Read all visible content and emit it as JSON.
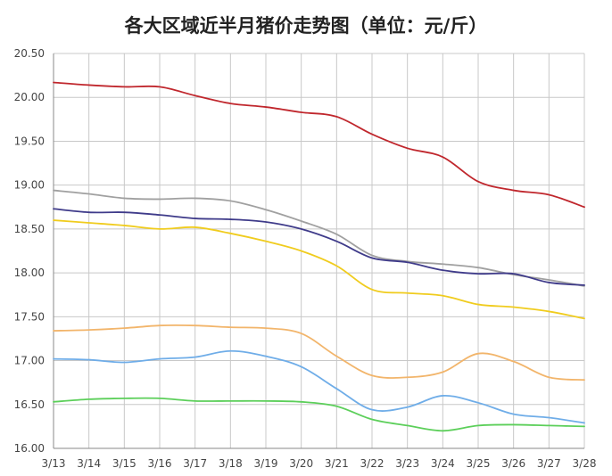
{
  "chart_data": {
    "type": "line",
    "title": "各大区域近半月猪价走势图（单位：元/斤）",
    "xlabel": "",
    "ylabel": "",
    "categories": [
      "3/13",
      "3/14",
      "3/15",
      "3/16",
      "3/17",
      "3/18",
      "3/19",
      "3/20",
      "3/21",
      "3/22",
      "3/23",
      "3/24",
      "3/25",
      "3/26",
      "3/27",
      "3/28"
    ],
    "ylim": [
      16.0,
      20.5
    ],
    "yticks": [
      "16.00",
      "16.50",
      "17.00",
      "17.50",
      "18.00",
      "18.50",
      "19.00",
      "19.50",
      "20.00",
      "20.50"
    ],
    "grid": true,
    "legend": "none",
    "series": [
      {
        "color": "#c0272d",
        "values": [
          20.17,
          20.14,
          20.12,
          20.12,
          20.02,
          19.93,
          19.89,
          19.83,
          19.78,
          19.58,
          19.42,
          19.32,
          19.04,
          18.94,
          18.89,
          18.75
        ]
      },
      {
        "color": "#a0a0a0",
        "values": [
          18.94,
          18.9,
          18.85,
          18.84,
          18.85,
          18.82,
          18.72,
          18.59,
          18.44,
          18.2,
          18.13,
          18.1,
          18.06,
          17.98,
          17.92,
          17.85
        ]
      },
      {
        "color": "#3f3b8a",
        "values": [
          18.73,
          18.69,
          18.69,
          18.66,
          18.62,
          18.61,
          18.58,
          18.5,
          18.36,
          18.17,
          18.12,
          18.03,
          17.99,
          17.99,
          17.89,
          17.86
        ]
      },
      {
        "color": "#f0cc1e",
        "values": [
          18.6,
          18.57,
          18.54,
          18.5,
          18.52,
          18.45,
          18.36,
          18.25,
          18.08,
          17.81,
          17.77,
          17.74,
          17.64,
          17.61,
          17.56,
          17.48
        ]
      },
      {
        "color": "#f2b56b",
        "values": [
          17.34,
          17.35,
          17.37,
          17.4,
          17.4,
          17.38,
          17.37,
          17.31,
          17.05,
          16.83,
          16.81,
          16.87,
          17.08,
          16.99,
          16.81,
          16.78
        ]
      },
      {
        "color": "#6fade8",
        "values": [
          17.02,
          17.01,
          16.98,
          17.02,
          17.04,
          17.11,
          17.05,
          16.93,
          16.68,
          16.44,
          16.47,
          16.6,
          16.52,
          16.39,
          16.35,
          16.29
        ]
      },
      {
        "color": "#5ccf5a",
        "values": [
          16.53,
          16.56,
          16.57,
          16.57,
          16.54,
          16.54,
          16.54,
          16.53,
          16.48,
          16.33,
          16.26,
          16.2,
          16.26,
          16.27,
          16.26,
          16.25
        ]
      }
    ]
  }
}
